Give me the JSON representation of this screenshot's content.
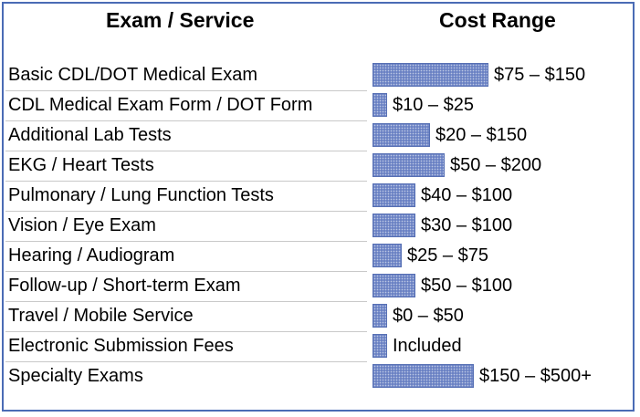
{
  "header": {
    "left": "Exam / Service",
    "right": "Cost Range"
  },
  "chart_data": {
    "type": "bar",
    "orientation": "horizontal",
    "categories": [
      "Basic CDL/DOT Medical Exam",
      "CDL Medical Exam Form / DOT Form",
      "Additional Lab Tests",
      "EKG / Heart Tests",
      "Pulmonary / Lung Function Tests",
      "Vision / Eye Exam",
      "Hearing / Audiogram",
      "Follow-up / Short-term Exam",
      "Travel / Mobile Service",
      "Electronic Submission Fees",
      "Specialty Exams"
    ],
    "labels": [
      "$75 – $150",
      "$10 – $25",
      "$20 – $150",
      "$50 – $200",
      "$40 – $100",
      "$30 – $100",
      "$25 – $75",
      "$50 – $100",
      "$0 – $50",
      "Included",
      "$150 – $500+"
    ],
    "values": [
      127,
      16,
      63,
      79,
      47,
      47,
      32,
      47,
      16,
      16,
      111
    ],
    "bar_color": "#6b82c4",
    "grid": false
  }
}
